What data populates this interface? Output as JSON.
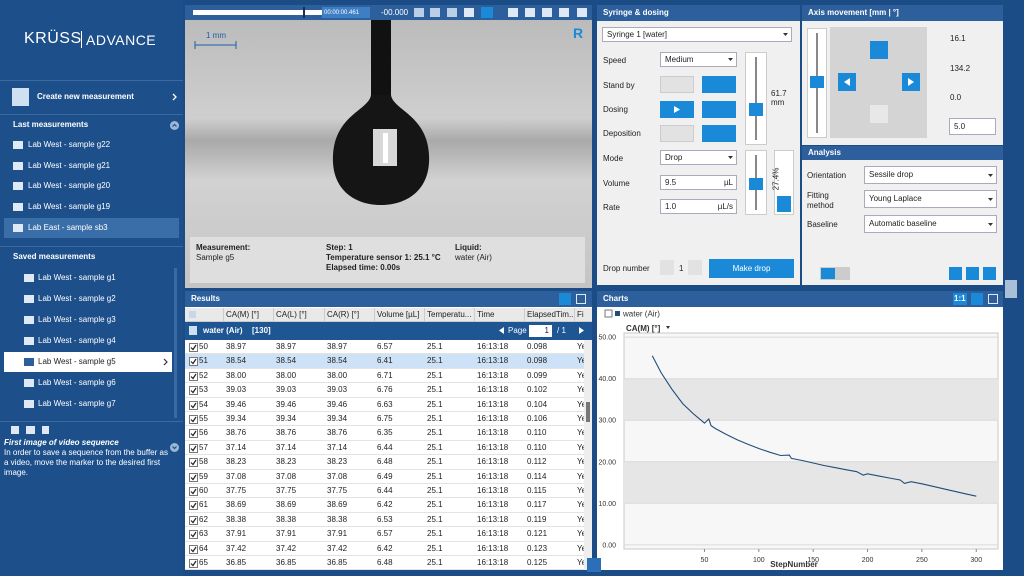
{
  "sidebar": {
    "logo_brand": "KRÜSS",
    "logo_product": "ADVANCE",
    "create": "Create new measurement",
    "last_measurements": {
      "title": "Last measurements",
      "selected": 4,
      "items": [
        "Lab West - sample g22",
        "Lab West - sample g21",
        "Lab West - sample g20",
        "Lab West - sample g19",
        "Lab East - sample sb3"
      ]
    },
    "saved_measurements": {
      "title": "Saved measurements",
      "selected": 4,
      "items": [
        "Lab West - sample g1",
        "Lab West - sample g2",
        "Lab West - sample g3",
        "Lab West - sample g4",
        "Lab West - sample g5",
        "Lab West - sample g6",
        "Lab West - sample g7"
      ]
    },
    "help": {
      "title": "First image of video sequence",
      "text": "In order to save a sequence from the buffer as a video, move the marker to the desired first image."
    }
  },
  "video": {
    "timestamp": "00:00:00.461",
    "offset": "-00.000",
    "scale": "1 mm",
    "badge": "R",
    "info": {
      "measurement_label": "Measurement:",
      "measurement": "Sample g5",
      "step": "Step: 1",
      "temperature": "Temperature sensor 1:  25.1 °C",
      "elapsed": "Elapsed time: 0.00s",
      "liquid_label": "Liquid:",
      "liquid": "water (Air)"
    }
  },
  "syringe": {
    "title": "Syringe & dosing",
    "syringe": "Syringe 1 [water]",
    "speed_label": "Speed",
    "speed": "Medium",
    "standby_label": "Stand by",
    "dosing_label": "Dosing",
    "deposition_label": "Deposition",
    "position": "61.7",
    "position_unit": "mm",
    "mode_label": "Mode",
    "mode": "Drop",
    "volume_label": "Volume",
    "volume": "9.5",
    "volume_unit": "µL",
    "rate_label": "Rate",
    "rate": "1.0",
    "rate_unit": "µL/s",
    "fill": "27.4%",
    "drop_number_label": "Drop number",
    "drop_number": "1",
    "make_drop": "Make drop"
  },
  "axis": {
    "title": "Axis movement [mm | °]",
    "x": "16.1",
    "y": "134.2",
    "angle": "0.0",
    "step": "5.0"
  },
  "analysis": {
    "title": "Analysis",
    "orientation_label": "Orientation",
    "orientation": "Sessile drop",
    "fitting_label": "Fitting method",
    "fitting": "Young Laplace",
    "baseline_label": "Baseline",
    "baseline": "Automatic baseline"
  },
  "results": {
    "title": "Results",
    "group": "water (Air)",
    "count": "[130]",
    "page_label": "Page",
    "page": "1",
    "pages": "/ 1",
    "selected_row": 1,
    "columns": [
      "CA(M) [°]",
      "CA(L) [°]",
      "CA(R) [°]",
      "Volume [µL]",
      "Temperatu...",
      "Time",
      "ElapsedTim...",
      "Fi"
    ],
    "rows": [
      [
        "50",
        "38.97",
        "38.97",
        "38.97",
        "6.57",
        "25.1",
        "16:13:18",
        "0.098",
        "Yes"
      ],
      [
        "51",
        "38.54",
        "38.54",
        "38.54",
        "6.41",
        "25.1",
        "16:13:18",
        "0.098",
        "Yes"
      ],
      [
        "52",
        "38.00",
        "38.00",
        "38.00",
        "6.71",
        "25.1",
        "16:13:18",
        "0.099",
        "Yes"
      ],
      [
        "53",
        "39.03",
        "39.03",
        "39.03",
        "6.76",
        "25.1",
        "16:13:18",
        "0.102",
        "Yes"
      ],
      [
        "54",
        "39.46",
        "39.46",
        "39.46",
        "6.63",
        "25.1",
        "16:13:18",
        "0.104",
        "Yes"
      ],
      [
        "55",
        "39.34",
        "39.34",
        "39.34",
        "6.75",
        "25.1",
        "16:13:18",
        "0.106",
        "Yes"
      ],
      [
        "56",
        "38.76",
        "38.76",
        "38.76",
        "6.35",
        "25.1",
        "16:13:18",
        "0.110",
        "Yes"
      ],
      [
        "57",
        "37.14",
        "37.14",
        "37.14",
        "6.44",
        "25.1",
        "16:13:18",
        "0.110",
        "Yes"
      ],
      [
        "58",
        "38.23",
        "38.23",
        "38.23",
        "6.48",
        "25.1",
        "16:13:18",
        "0.112",
        "Yes"
      ],
      [
        "59",
        "37.08",
        "37.08",
        "37.08",
        "6.49",
        "25.1",
        "16:13:18",
        "0.114",
        "Yes"
      ],
      [
        "60",
        "37.75",
        "37.75",
        "37.75",
        "6.44",
        "25.1",
        "16:13:18",
        "0.115",
        "Yes"
      ],
      [
        "61",
        "38.69",
        "38.69",
        "38.69",
        "6.42",
        "25.1",
        "16:13:18",
        "0.117",
        "Yes"
      ],
      [
        "62",
        "38.38",
        "38.38",
        "38.38",
        "6.53",
        "25.1",
        "16:13:18",
        "0.119",
        "Yes"
      ],
      [
        "63",
        "37.91",
        "37.91",
        "37.91",
        "6.57",
        "25.1",
        "16:13:18",
        "0.121",
        "Yes"
      ],
      [
        "64",
        "37.42",
        "37.42",
        "37.42",
        "6.42",
        "25.1",
        "16:13:18",
        "0.123",
        "Yes"
      ],
      [
        "65",
        "36.85",
        "36.85",
        "36.85",
        "6.48",
        "25.1",
        "16:13:18",
        "0.125",
        "Yes"
      ]
    ]
  },
  "charts_panel": {
    "title": "Charts",
    "ratio": "1:1"
  },
  "chart_data": {
    "type": "line",
    "y_label": "CA(M) [°]",
    "x_label": "StepNumber",
    "x": [
      2,
      10,
      20,
      30,
      40,
      50,
      54,
      56,
      60,
      70,
      80,
      90,
      100,
      110,
      120,
      128,
      130,
      140,
      150,
      160,
      170,
      180,
      190,
      196,
      200,
      210,
      220,
      230,
      234,
      240,
      250,
      260,
      270,
      280,
      290,
      300
    ],
    "series": [
      {
        "name": "water (Air)",
        "color": "#1f4e79",
        "values": [
          45.5,
          41.5,
          37.5,
          34,
          31.5,
          29.3,
          30.3,
          28.7,
          28,
          26.6,
          25.3,
          24.2,
          23.2,
          22.3,
          21.5,
          21.6,
          20.8,
          20.3,
          19.7,
          19.1,
          18.6,
          18.1,
          17.6,
          16.8,
          17.1,
          16.6,
          16.1,
          15.6,
          14.8,
          15.2,
          14.7,
          14.1,
          13.5,
          12.9,
          12.3,
          11.7
        ]
      }
    ],
    "xlim": [
      -24,
      320
    ],
    "ylim": [
      -1,
      51
    ],
    "xticks": [
      50,
      100,
      150,
      200,
      250,
      300
    ],
    "yticks": [
      {
        "value": 0,
        "label": "0.00"
      },
      {
        "value": 10,
        "label": "10.00"
      },
      {
        "value": 20,
        "label": "20.00"
      },
      {
        "value": 30,
        "label": "30.00"
      },
      {
        "value": 40,
        "label": "40.00"
      },
      {
        "value": 50,
        "label": "50.00"
      }
    ],
    "grid": true
  }
}
